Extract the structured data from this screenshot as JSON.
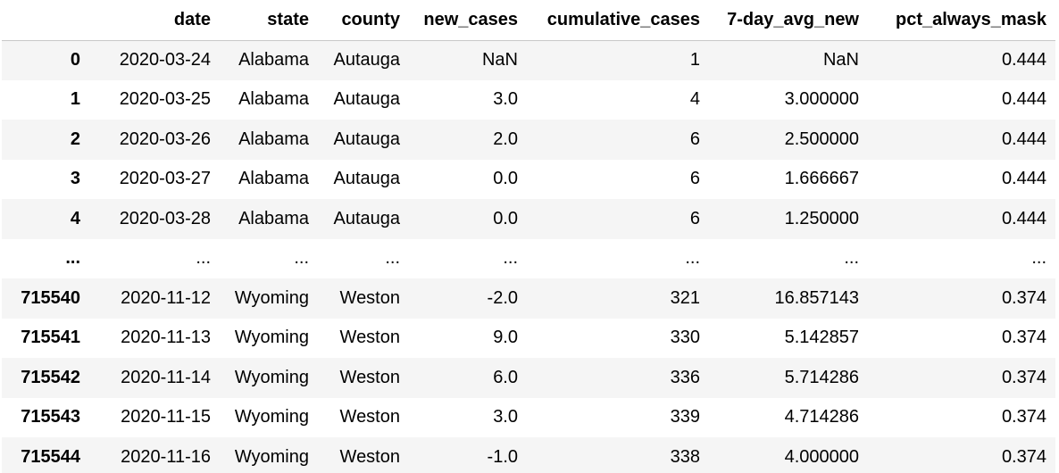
{
  "table": {
    "columns": [
      "",
      "date",
      "state",
      "county",
      "new_cases",
      "cumulative_cases",
      "7-day_avg_new",
      "pct_always_mask"
    ],
    "rows": [
      [
        "0",
        "2020-03-24",
        "Alabama",
        "Autauga",
        "NaN",
        "1",
        "NaN",
        "0.444"
      ],
      [
        "1",
        "2020-03-25",
        "Alabama",
        "Autauga",
        "3.0",
        "4",
        "3.000000",
        "0.444"
      ],
      [
        "2",
        "2020-03-26",
        "Alabama",
        "Autauga",
        "2.0",
        "6",
        "2.500000",
        "0.444"
      ],
      [
        "3",
        "2020-03-27",
        "Alabama",
        "Autauga",
        "0.0",
        "6",
        "1.666667",
        "0.444"
      ],
      [
        "4",
        "2020-03-28",
        "Alabama",
        "Autauga",
        "0.0",
        "6",
        "1.250000",
        "0.444"
      ],
      [
        "...",
        "...",
        "...",
        "...",
        "...",
        "...",
        "...",
        "..."
      ],
      [
        "715540",
        "2020-11-12",
        "Wyoming",
        "Weston",
        "-2.0",
        "321",
        "16.857143",
        "0.374"
      ],
      [
        "715541",
        "2020-11-13",
        "Wyoming",
        "Weston",
        "9.0",
        "330",
        "5.142857",
        "0.374"
      ],
      [
        "715542",
        "2020-11-14",
        "Wyoming",
        "Weston",
        "6.0",
        "336",
        "5.714286",
        "0.374"
      ],
      [
        "715543",
        "2020-11-15",
        "Wyoming",
        "Weston",
        "3.0",
        "339",
        "4.714286",
        "0.374"
      ],
      [
        "715544",
        "2020-11-16",
        "Wyoming",
        "Weston",
        "-1.0",
        "338",
        "4.000000",
        "0.374"
      ]
    ]
  }
}
